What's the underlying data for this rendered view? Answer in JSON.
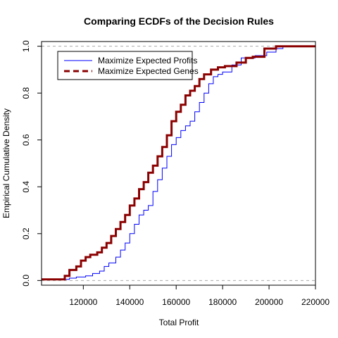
{
  "chart_data": {
    "type": "line",
    "step": true,
    "title": "Comparing ECDFs of the Decision Rules",
    "xlabel": "Total Profit",
    "ylabel": "Empirical Cumulative Density",
    "xlim": [
      102000,
      220000
    ],
    "ylim": [
      -0.02,
      1.02
    ],
    "x_ticks": [
      120000,
      140000,
      160000,
      180000,
      200000,
      220000
    ],
    "y_ticks": [
      0.0,
      0.2,
      0.4,
      0.6,
      0.8,
      1.0
    ],
    "x_tick_labels": [
      "120000",
      "140000",
      "160000",
      "180000",
      "200000",
      "220000"
    ],
    "y_tick_labels": [
      "0.0",
      "0.2",
      "0.4",
      "0.6",
      "0.8",
      "1.0"
    ],
    "reference_lines_y": [
      0.0,
      1.0
    ],
    "legend_position": "top-left",
    "series": [
      {
        "name": "Maximize Expected Profits",
        "color": "#0000ff",
        "line_style": "solid",
        "points": [
          [
            102000,
            0.005
          ],
          [
            113000,
            0.005
          ],
          [
            114000,
            0.01
          ],
          [
            117000,
            0.015
          ],
          [
            121000,
            0.02
          ],
          [
            124000,
            0.03
          ],
          [
            127000,
            0.04
          ],
          [
            129000,
            0.06
          ],
          [
            131000,
            0.075
          ],
          [
            134000,
            0.1
          ],
          [
            136000,
            0.13
          ],
          [
            138000,
            0.16
          ],
          [
            140000,
            0.2
          ],
          [
            142000,
            0.24
          ],
          [
            144000,
            0.28
          ],
          [
            146000,
            0.3
          ],
          [
            148000,
            0.32
          ],
          [
            150000,
            0.38
          ],
          [
            152000,
            0.43
          ],
          [
            154000,
            0.48
          ],
          [
            156000,
            0.53
          ],
          [
            158000,
            0.58
          ],
          [
            160000,
            0.61
          ],
          [
            162000,
            0.64
          ],
          [
            164000,
            0.66
          ],
          [
            166000,
            0.68
          ],
          [
            168000,
            0.72
          ],
          [
            170000,
            0.76
          ],
          [
            172000,
            0.8
          ],
          [
            174000,
            0.84
          ],
          [
            176000,
            0.87
          ],
          [
            178000,
            0.88
          ],
          [
            180000,
            0.89
          ],
          [
            184000,
            0.92
          ],
          [
            188000,
            0.95
          ],
          [
            194000,
            0.96
          ],
          [
            199000,
            0.975
          ],
          [
            203000,
            0.99
          ],
          [
            206000,
            1.0
          ],
          [
            220000,
            1.0
          ]
        ]
      },
      {
        "name": "Maximize Expected Genes",
        "color": "#8b0000",
        "line_style": "dashed",
        "points": [
          [
            102000,
            0.005
          ],
          [
            110000,
            0.005
          ],
          [
            112000,
            0.02
          ],
          [
            114000,
            0.045
          ],
          [
            117000,
            0.06
          ],
          [
            119000,
            0.085
          ],
          [
            121000,
            0.1
          ],
          [
            123000,
            0.11
          ],
          [
            126000,
            0.12
          ],
          [
            128000,
            0.14
          ],
          [
            130000,
            0.16
          ],
          [
            132000,
            0.19
          ],
          [
            134000,
            0.22
          ],
          [
            136000,
            0.25
          ],
          [
            138000,
            0.28
          ],
          [
            140000,
            0.32
          ],
          [
            142000,
            0.35
          ],
          [
            144000,
            0.39
          ],
          [
            146000,
            0.42
          ],
          [
            148000,
            0.46
          ],
          [
            150000,
            0.49
          ],
          [
            152000,
            0.53
          ],
          [
            154000,
            0.57
          ],
          [
            156000,
            0.62
          ],
          [
            158000,
            0.68
          ],
          [
            160000,
            0.72
          ],
          [
            162000,
            0.75
          ],
          [
            164000,
            0.79
          ],
          [
            166000,
            0.81
          ],
          [
            168000,
            0.83
          ],
          [
            170000,
            0.86
          ],
          [
            172000,
            0.88
          ],
          [
            175000,
            0.9
          ],
          [
            178000,
            0.91
          ],
          [
            181000,
            0.915
          ],
          [
            186000,
            0.93
          ],
          [
            190000,
            0.95
          ],
          [
            193000,
            0.955
          ],
          [
            198000,
            0.99
          ],
          [
            203000,
            1.0
          ],
          [
            220000,
            1.0
          ]
        ]
      }
    ]
  }
}
